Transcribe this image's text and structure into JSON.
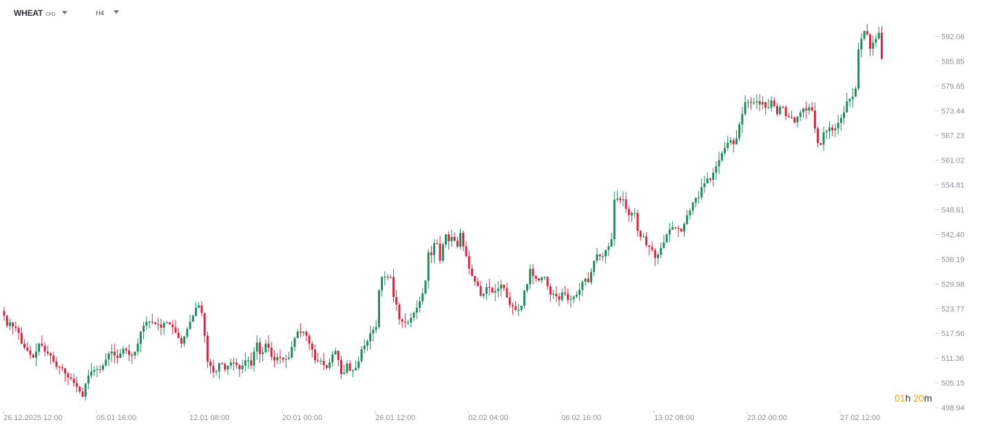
{
  "header": {
    "symbol": "WHEAT",
    "symbol_type": "CFD",
    "timeframe": "H4"
  },
  "countdown": {
    "hours": "01",
    "hours_unit": "h",
    "minutes": "20",
    "minutes_unit": "m"
  },
  "colors": {
    "up": "#1e8a5a",
    "down": "#d0263f",
    "axis_text": "#8a9099",
    "accent": "#f0a020"
  },
  "chart_data": {
    "type": "candlestick",
    "title": "",
    "xlabel": "",
    "ylabel": "",
    "ylim": [
      498.94,
      597.4
    ],
    "y_ticks": [
      "592.06",
      "585.85",
      "579.65",
      "573.44",
      "567.23",
      "561.02",
      "554.81",
      "548.61",
      "542.40",
      "536.19",
      "529.98",
      "523.77",
      "517.56",
      "511.36",
      "505.15",
      "498.94"
    ],
    "x_ticks": [
      "26.12.2025  12:00",
      "05.01  16:00",
      "12.01  08:00",
      "20.01  00:00",
      "26.01  12:00",
      "02.02  04:00",
      "06.02  16:00",
      "13.02  08:00",
      "23.02  00:00",
      "27.02  12:00"
    ],
    "grid": false,
    "series_note": "",
    "closes": [
      522.0,
      519.5,
      520.3,
      519.3,
      518.9,
      517.7,
      515.0,
      514.0,
      513.3,
      512.2,
      511.5,
      513.0,
      515.0,
      514.5,
      513.0,
      512.6,
      512.0,
      510.5,
      509.2,
      509.1,
      508.8,
      507.5,
      506.5,
      506.2,
      505.1,
      504.2,
      503.0,
      501.7,
      505.0,
      507.0,
      508.0,
      508.4,
      508.6,
      508.5,
      509.5,
      511.0,
      512.5,
      513.0,
      512.0,
      511.4,
      512.5,
      513.7,
      513.3,
      512.2,
      512.0,
      513.0,
      515.0,
      518.0,
      519.5,
      520.5,
      520.5,
      520.4,
      520.0,
      519.8,
      519.0,
      520.2,
      520.3,
      519.8,
      519.1,
      517.8,
      516.4,
      515.0,
      516.8,
      518.7,
      520.5,
      522.0,
      524.0,
      524.6,
      522.7,
      517.0,
      510.5,
      509.4,
      507.8,
      508.0,
      510.1,
      509.9,
      508.5,
      509.5,
      510.3,
      510.2,
      509.6,
      508.6,
      509.5,
      510.8,
      510.8,
      509.5,
      513.0,
      515.3,
      512.4,
      512.8,
      515.0,
      514.0,
      511.7,
      510.8,
      511.6,
      511.5,
      511.0,
      511.2,
      511.5,
      514.2,
      516.4,
      518.0,
      517.7,
      518.0,
      517.0,
      515.0,
      513.5,
      510.8,
      510.6,
      510.7,
      509.6,
      508.9,
      510.3,
      512.3,
      513.2,
      510.9,
      507.4,
      507.7,
      510.0,
      508.2,
      508.3,
      508.9,
      510.6,
      513.6,
      514.5,
      515.6,
      517.6,
      518.5,
      519.2,
      528.4,
      531.7,
      531.8,
      531.7,
      531.7,
      526.7,
      524.8,
      521.1,
      520.5,
      520.3,
      520.3,
      521.5,
      522.8,
      524.0,
      525.6,
      527.6,
      530.8,
      537.9,
      537.2,
      540.2,
      540.1,
      535.8,
      539.9,
      542.4,
      540.7,
      541.8,
      540.8,
      539.3,
      542.8,
      539.4,
      537.0,
      533.8,
      532.0,
      530.6,
      529.4,
      527.0,
      527.5,
      529.2,
      529.0,
      527.8,
      528.2,
      528.8,
      529.8,
      528.9,
      526.6,
      524.7,
      524.4,
      523.5,
      523.5,
      524.5,
      528.3,
      529.9,
      533.8,
      532.0,
      531.3,
      530.9,
      531.6,
      531.7,
      529.4,
      527.3,
      527.5,
      526.9,
      526.0,
      527.8,
      527.5,
      526.0,
      526.2,
      526.8,
      527.3,
      528.5,
      530.5,
      531.3,
      530.4,
      533.0,
      535.8,
      537.4,
      536.9,
      536.9,
      538.5,
      539.4,
      541.2,
      551.1,
      551.4,
      551.0,
      551.2,
      548.8,
      547.2,
      547.8,
      547.8,
      543.3,
      541.8,
      541.9,
      539.7,
      539.3,
      538.5,
      536.5,
      537.3,
      539.0,
      540.4,
      542.4,
      543.6,
      544.2,
      544.0,
      543.9,
      543.1,
      545.0,
      547.2,
      548.4,
      550.4,
      551.6,
      551.7,
      554.3,
      555.2,
      556.4,
      556.1,
      557.9,
      559.5,
      561.0,
      562.8,
      564.1,
      565.4,
      566.0,
      565.0,
      566.5,
      570.0,
      572.6,
      575.6,
      575.6,
      575.5,
      575.5,
      575.8,
      575.0,
      575.6,
      574.2,
      574.2,
      576.0,
      574.6,
      572.6,
      574.4,
      574.3,
      572.1,
      571.9,
      571.8,
      570.5,
      571.9,
      573.0,
      574.0,
      573.5,
      574.3,
      573.5,
      569.0,
      565.3,
      564.9,
      568.0,
      568.3,
      569.2,
      568.5,
      569.0,
      570.4,
      571.6,
      573.0,
      575.8,
      576.4,
      577.0,
      579.0,
      588.8,
      591.5,
      593.4,
      592.6,
      589.0,
      590.5,
      591.5,
      593.0,
      586.5
    ]
  }
}
